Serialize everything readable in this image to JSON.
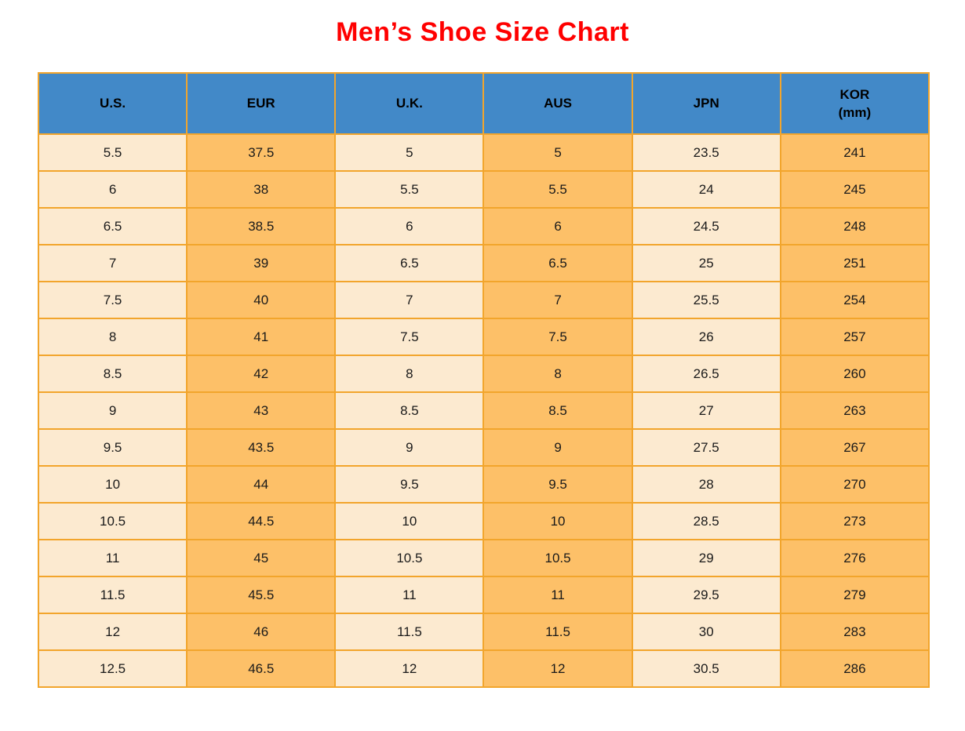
{
  "title": {
    "text": "Men’s Shoe Size Chart",
    "color": "#ff0000"
  },
  "table": {
    "headers": [
      {
        "label": "U.S.",
        "sublabel": ""
      },
      {
        "label": "EUR",
        "sublabel": ""
      },
      {
        "label": "U.K.",
        "sublabel": ""
      },
      {
        "label": "AUS",
        "sublabel": ""
      },
      {
        "label": "JPN",
        "sublabel": ""
      },
      {
        "label": "KOR",
        "sublabel": "(mm)"
      }
    ],
    "rows": [
      [
        "5.5",
        "37.5",
        "5",
        "5",
        "23.5",
        "241"
      ],
      [
        "6",
        "38",
        "5.5",
        "5.5",
        "24",
        "245"
      ],
      [
        "6.5",
        "38.5",
        "6",
        "6",
        "24.5",
        "248"
      ],
      [
        "7",
        "39",
        "6.5",
        "6.5",
        "25",
        "251"
      ],
      [
        "7.5",
        "40",
        "7",
        "7",
        "25.5",
        "254"
      ],
      [
        "8",
        "41",
        "7.5",
        "7.5",
        "26",
        "257"
      ],
      [
        "8.5",
        "42",
        "8",
        "8",
        "26.5",
        "260"
      ],
      [
        "9",
        "43",
        "8.5",
        "8.5",
        "27",
        "263"
      ],
      [
        "9.5",
        "43.5",
        "9",
        "9",
        "27.5",
        "267"
      ],
      [
        "10",
        "44",
        "9.5",
        "9.5",
        "28",
        "270"
      ],
      [
        "10.5",
        "44.5",
        "10",
        "10",
        "28.5",
        "273"
      ],
      [
        "11",
        "45",
        "10.5",
        "10.5",
        "29",
        "276"
      ],
      [
        "11.5",
        "45.5",
        "11",
        "11",
        "29.5",
        "279"
      ],
      [
        "12",
        "46",
        "11.5",
        "11.5",
        "30",
        "283"
      ],
      [
        "12.5",
        "46.5",
        "12",
        "12",
        "30.5",
        "286"
      ]
    ],
    "colors": {
      "header_bg": "#4289c8",
      "light_cell_bg": "#fcead0",
      "orange_cell_bg": "#fdc068",
      "border": "#f2a52c",
      "text": "#1a1a1a"
    }
  },
  "chart_data": {
    "type": "table",
    "title": "Men's Shoe Size Chart",
    "columns": [
      "U.S.",
      "EUR",
      "U.K.",
      "AUS",
      "JPN",
      "KOR (mm)"
    ],
    "rows": [
      [
        "5.5",
        "37.5",
        "5",
        "5",
        "23.5",
        "241"
      ],
      [
        "6",
        "38",
        "5.5",
        "5.5",
        "24",
        "245"
      ],
      [
        "6.5",
        "38.5",
        "6",
        "6",
        "24.5",
        "248"
      ],
      [
        "7",
        "39",
        "6.5",
        "6.5",
        "25",
        "251"
      ],
      [
        "7.5",
        "40",
        "7",
        "7",
        "25.5",
        "254"
      ],
      [
        "8",
        "41",
        "7.5",
        "7.5",
        "26",
        "257"
      ],
      [
        "8.5",
        "42",
        "8",
        "8",
        "26.5",
        "260"
      ],
      [
        "9",
        "43",
        "8.5",
        "8.5",
        "27",
        "263"
      ],
      [
        "9.5",
        "43.5",
        "9",
        "9",
        "27.5",
        "267"
      ],
      [
        "10",
        "44",
        "9.5",
        "9.5",
        "28",
        "270"
      ],
      [
        "10.5",
        "44.5",
        "10",
        "10",
        "28.5",
        "273"
      ],
      [
        "11",
        "45",
        "10.5",
        "10.5",
        "29",
        "276"
      ],
      [
        "11.5",
        "45.5",
        "11",
        "11",
        "29.5",
        "279"
      ],
      [
        "12",
        "46",
        "11.5",
        "11.5",
        "30",
        "283"
      ],
      [
        "12.5",
        "46.5",
        "12",
        "12",
        "30.5",
        "286"
      ]
    ],
    "layout": {
      "column_background_pattern": [
        "light",
        "orange",
        "light",
        "orange",
        "light",
        "orange"
      ],
      "header_style": "blue background, bold black text",
      "grid": "orange borders"
    }
  }
}
